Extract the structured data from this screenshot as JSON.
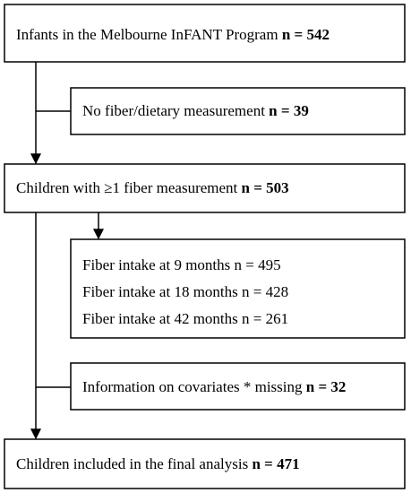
{
  "nodes": [
    {
      "label": "Infants in the Melbourne InFANT Program",
      "count": "n = 542"
    },
    {
      "label": "No fiber/dietary measurement",
      "count": "n = 39"
    },
    {
      "label": "Children with ≥1 fiber measurement",
      "count": "n = 503"
    },
    {
      "lines": [
        "Fiber intake at 9 months n = 495",
        "Fiber intake at 18 months n = 428",
        "Fiber intake at 42 months n = 261"
      ]
    },
    {
      "label": "Information on covariates * missing",
      "count": "n = 32"
    },
    {
      "label": "Children included in the final analysis",
      "count": "n = 471"
    }
  ]
}
